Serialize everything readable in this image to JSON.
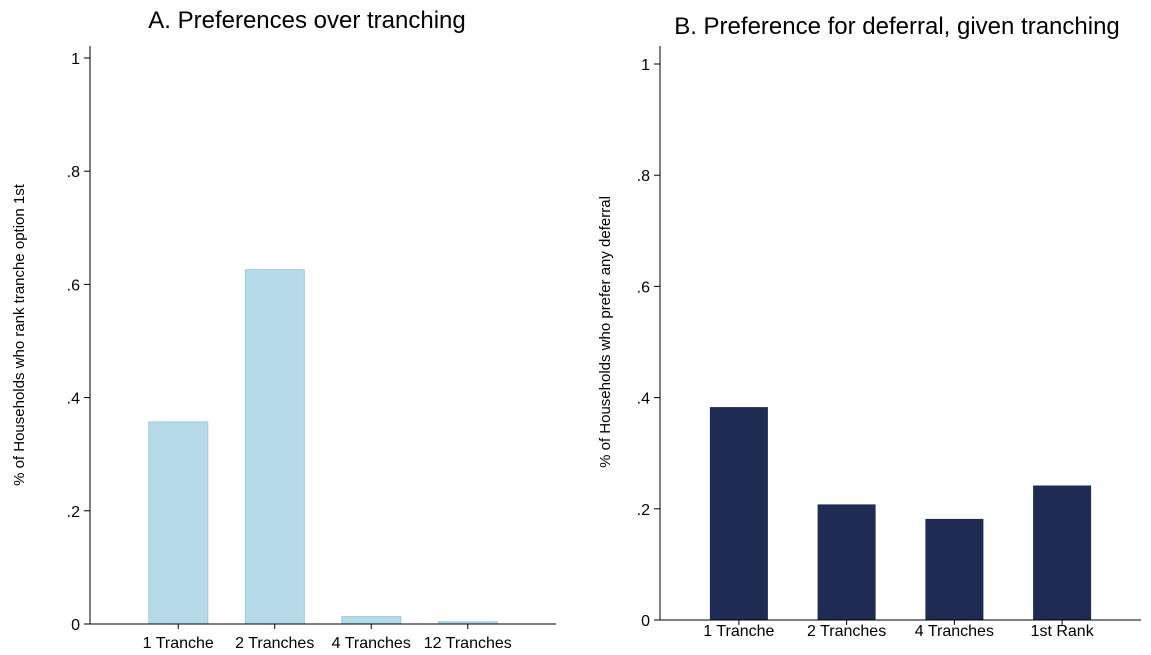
{
  "chart_data": [
    {
      "type": "bar",
      "title": "A. Preferences over tranching",
      "ylabel": "% of Households who rank tranche option 1st",
      "xlabel": "",
      "categories": [
        "1 Tranche",
        "2 Tranches",
        "4 Tranches",
        "12 Tranches"
      ],
      "values": [
        0.357,
        0.626,
        0.013,
        0.004
      ],
      "ylim": [
        0,
        1
      ],
      "yticks": [
        0,
        0.2,
        0.4,
        0.6,
        0.8,
        1
      ],
      "ytick_labels": [
        "0",
        ".2",
        ".4",
        ".6",
        ".8",
        "1"
      ],
      "grid": false,
      "colors": {
        "bar": "#b5dbe8",
        "bar_edge": "#9ccadb"
      }
    },
    {
      "type": "bar",
      "title": "B. Preference for deferral, given tranching",
      "ylabel": "% of Households who prefer any deferral",
      "xlabel": "",
      "categories": [
        "1 Tranche",
        "2 Tranches",
        "4 Tranches",
        "1st Rank"
      ],
      "values": [
        0.382,
        0.207,
        0.181,
        0.241
      ],
      "ylim": [
        0,
        1
      ],
      "yticks": [
        0,
        0.2,
        0.4,
        0.6,
        0.8,
        1
      ],
      "ytick_labels": [
        "0",
        ".2",
        ".4",
        ".6",
        ".8",
        "1"
      ],
      "grid": false,
      "colors": {
        "bar": "#1e2b52",
        "bar_edge": "#1e2b52"
      }
    }
  ]
}
